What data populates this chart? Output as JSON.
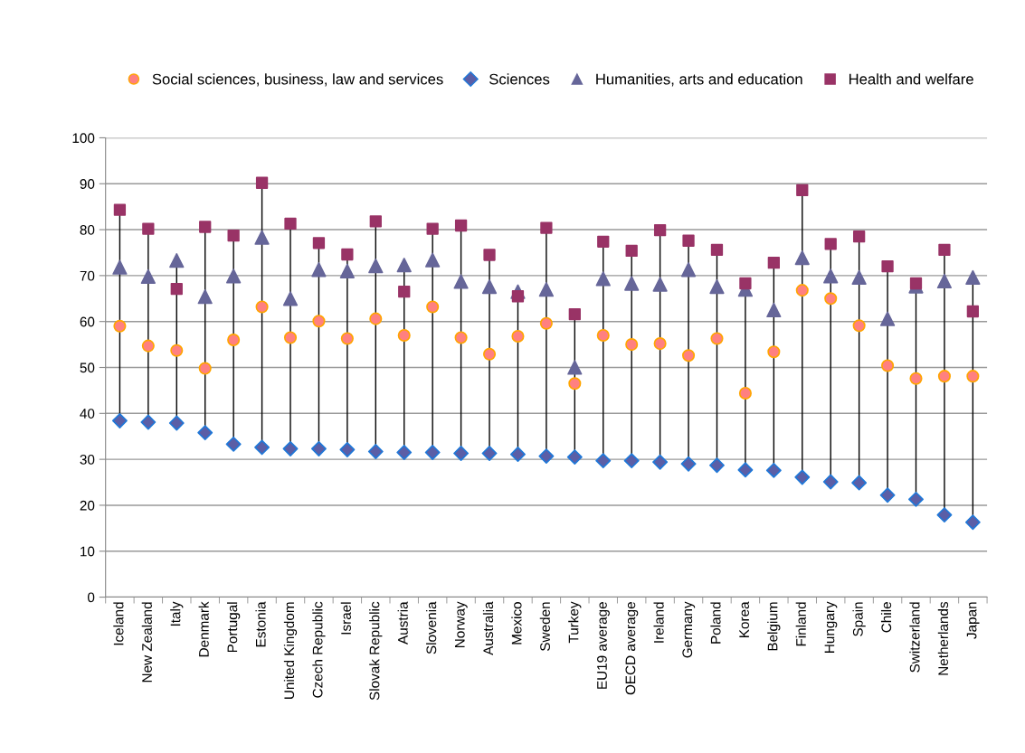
{
  "chart_data": {
    "type": "scatter",
    "categories": [
      "Iceland",
      "New Zealand",
      "Italy",
      "Denmark",
      "Portugal",
      "Estonia",
      "United Kingdom",
      "Czech Republic",
      "Israel",
      "Slovak Republic",
      "Austria",
      "Slovenia",
      "Norway",
      "Australia",
      "Mexico",
      "Sweden",
      "Turkey",
      "EU19 average",
      "OECD average",
      "Ireland",
      "Germany",
      "Poland",
      "Korea",
      "Belgium",
      "Finland",
      "Hungary",
      "Spain",
      "Chile",
      "Switzerland",
      "Netherlands",
      "Japan"
    ],
    "series": [
      {
        "name": "Social sciences, business, law and services",
        "color": "#ff8080",
        "marker": "circle",
        "values": [
          59,
          54.7,
          53.7,
          49.8,
          56,
          63.2,
          56.5,
          60.1,
          56.3,
          60.6,
          57,
          63.2,
          56.5,
          52.9,
          56.8,
          59.6,
          46.5,
          57,
          55,
          55.2,
          52.6,
          56.3,
          44.4,
          53.4,
          66.8,
          65,
          59.1,
          50.4,
          47.6,
          48.1,
          48.1
        ]
      },
      {
        "name": "Sciences",
        "color": "#5b5ea6",
        "marker": "diamond",
        "values": [
          38.4,
          38.1,
          37.9,
          35.8,
          33.3,
          32.6,
          32.3,
          32.3,
          32.1,
          31.7,
          31.5,
          31.5,
          31.3,
          31.3,
          31.1,
          30.7,
          30.5,
          29.7,
          29.7,
          29.4,
          29,
          28.7,
          27.7,
          27.6,
          26.1,
          25.1,
          24.9,
          22.2,
          21.3,
          17.9,
          16.3
        ]
      },
      {
        "name": "Humanities, arts and education",
        "color": "#666699",
        "marker": "triangle",
        "values": [
          71.8,
          69.8,
          73.3,
          65.4,
          69.9,
          78.3,
          65,
          71.3,
          71,
          72.1,
          72.3,
          73.4,
          68.7,
          67.6,
          66.5,
          67,
          50,
          69.3,
          68.3,
          68.1,
          71.3,
          67.6,
          67,
          62.5,
          73.9,
          69.9,
          69.6,
          60.6,
          67.7,
          68.8,
          69.6
        ]
      },
      {
        "name": "Health and welfare",
        "color": "#993366",
        "marker": "square",
        "values": [
          84.3,
          80.2,
          67.1,
          80.6,
          78.7,
          90.2,
          81.3,
          77.1,
          74.6,
          81.8,
          66.5,
          80.2,
          80.9,
          74.5,
          65.5,
          80.4,
          61.6,
          77.4,
          75.4,
          79.9,
          77.6,
          75.6,
          68.3,
          72.8,
          88.6,
          76.9,
          78.5,
          72,
          68.3,
          75.6,
          62.2
        ]
      }
    ],
    "ylim": [
      0,
      100
    ],
    "yticks": [
      0,
      10,
      20,
      30,
      40,
      50,
      60,
      70,
      80,
      90,
      100
    ],
    "grid": "y",
    "legend": "top"
  }
}
